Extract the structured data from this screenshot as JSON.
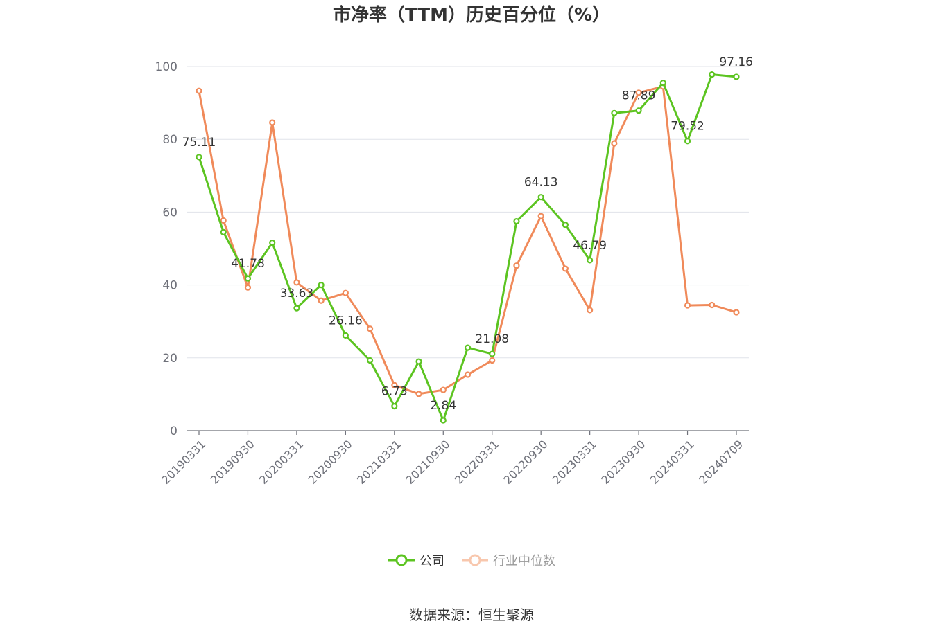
{
  "chart_data": {
    "type": "line",
    "title": "市净率（TTM）历史百分位（%）",
    "source": "数据来源：恒生聚源",
    "ylim": [
      0,
      100
    ],
    "yticks": [
      0,
      20,
      40,
      60,
      80,
      100
    ],
    "grid": true,
    "legend_position": "bottom",
    "x": [
      "20190331",
      "20190630",
      "20190930",
      "20191231",
      "20200331",
      "20200630",
      "20200930",
      "20201231",
      "20210331",
      "20210630",
      "20210930",
      "20211231",
      "20220331",
      "20220630",
      "20220930",
      "20221231",
      "20230331",
      "20230630",
      "20230930",
      "20231231",
      "20240331",
      "20240630",
      "20240709"
    ],
    "x_tick_labels": [
      "20190331",
      "20190930",
      "20200331",
      "20200930",
      "20210331",
      "20210930",
      "20220331",
      "20220930",
      "20230331",
      "20230930",
      "20240331",
      "20240709"
    ],
    "series": [
      {
        "name": "公司",
        "color": "#5cc421",
        "values": [
          75.11,
          54.5,
          41.78,
          51.6,
          33.63,
          40.0,
          26.16,
          19.3,
          6.73,
          19.0,
          2.84,
          22.8,
          21.08,
          57.5,
          64.13,
          56.5,
          46.79,
          87.2,
          87.89,
          95.5,
          79.52,
          97.8,
          97.16
        ],
        "data_labels": {
          "0": "75.11",
          "2": "41.78",
          "4": "33.63",
          "6": "26.16",
          "8": "6.73",
          "10": "2.84",
          "12": "21.08",
          "14": "64.13",
          "16": "46.79",
          "18": "87.89",
          "20": "79.52",
          "22": "97.16"
        }
      },
      {
        "name": "行业中位数",
        "color": "#f08a5a",
        "values": [
          93.3,
          57.7,
          39.3,
          84.6,
          40.7,
          35.7,
          37.8,
          28.0,
          12.5,
          10.1,
          11.2,
          15.4,
          19.3,
          45.3,
          58.9,
          44.5,
          33.1,
          78.9,
          92.8,
          94.5,
          34.4,
          34.5,
          32.5
        ]
      }
    ]
  },
  "legend": {
    "company_label": "公司",
    "industry_label": "行业中位数"
  }
}
